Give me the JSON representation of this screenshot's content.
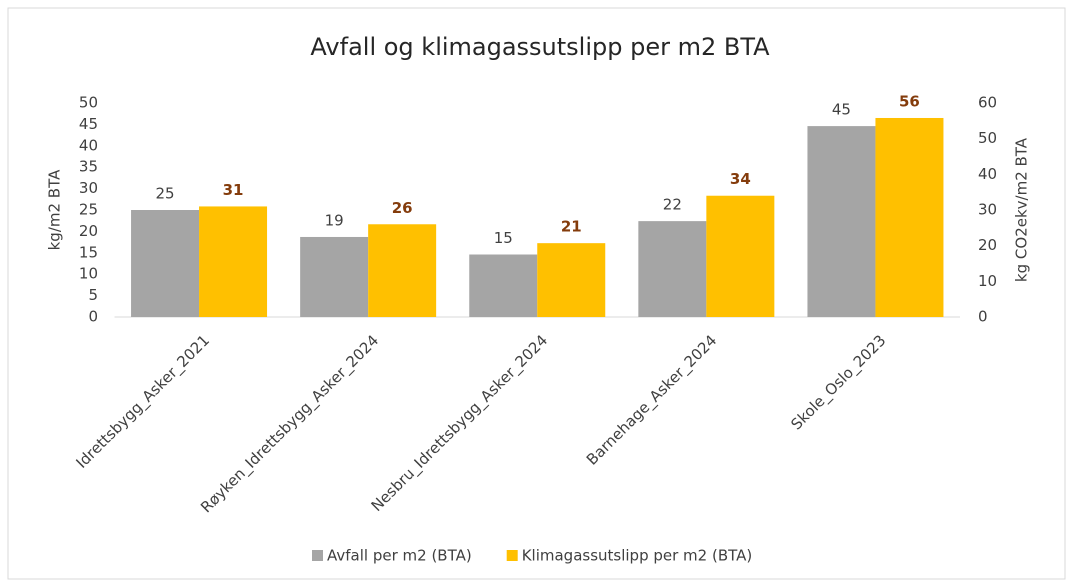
{
  "chart_data": {
    "type": "bar",
    "title": "Avfall og klimagassutslipp per m2 BTA",
    "ylabel": "kg/m2 BTA",
    "y2label": "kg CO2ekv/m2 BTA",
    "categories": [
      "Idrettsbygg_Asker_2021",
      "Røyken_Idrettsbygg_Asker_2024",
      "Nesbru_Idrettsbygg_Asker_2024",
      "Barnehage_Asker_2024",
      "Skole_Oslo_2023"
    ],
    "series": [
      {
        "name": "Avfall per m2 (BTA)",
        "color": "#a5a5a5",
        "values": [
          25,
          18.7,
          14.6,
          22.4,
          44.6
        ],
        "value_labels": [
          "25",
          "19",
          "15",
          "22",
          "45"
        ]
      },
      {
        "name": "Klimagassutslipp per m2 (BTA)",
        "color": "#ffc000",
        "axis": "y2",
        "values": [
          31,
          26,
          20.7,
          34,
          55.8
        ],
        "value_labels": [
          "31",
          "26",
          "21",
          "34",
          "56"
        ]
      }
    ],
    "ylim": [
      0,
      50
    ],
    "yticks": [
      0,
      5,
      10,
      15,
      20,
      25,
      30,
      35,
      40,
      45,
      50
    ],
    "y2lim": [
      0,
      60
    ],
    "y2ticks": [
      0,
      10,
      20,
      30,
      40,
      50,
      60
    ],
    "grid": false,
    "legend": "bottom"
  }
}
